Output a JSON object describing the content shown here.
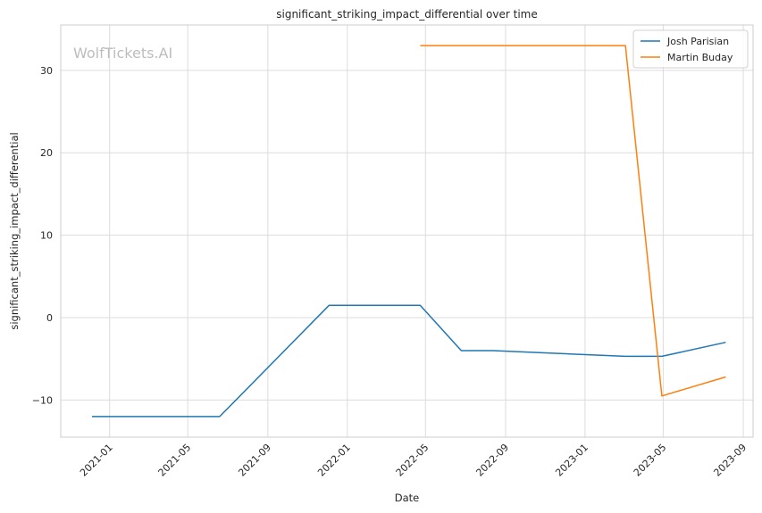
{
  "chart_data": {
    "type": "line",
    "title": "significant_striking_impact_differential over time",
    "xlabel": "Date",
    "ylabel": "significant_striking_impact_differential",
    "watermark": "WolfTickets.AI",
    "xlim": [
      "2020-10-18",
      "2023-09-16"
    ],
    "ylim": [
      -14.5,
      35.5
    ],
    "x_ticks": [
      "2021-01-01",
      "2021-05-01",
      "2021-09-01",
      "2022-01-01",
      "2022-05-01",
      "2022-09-01",
      "2023-01-01",
      "2023-05-01",
      "2023-09-01"
    ],
    "x_tick_labels": [
      "2021-01",
      "2021-05",
      "2021-09",
      "2022-01",
      "2022-05",
      "2022-09",
      "2023-01",
      "2023-05",
      "2023-09"
    ],
    "y_ticks": [
      -10,
      0,
      10,
      20,
      30
    ],
    "y_tick_labels": [
      "−10",
      "0",
      "10",
      "20",
      "30"
    ],
    "grid": true,
    "legend_position": "top-right",
    "series": [
      {
        "name": "Josh Parisian",
        "color": "#1f77b4",
        "x": [
          "2020-12-05",
          "2021-06-19",
          "2021-12-04",
          "2022-04-23",
          "2022-06-25",
          "2022-08-13",
          "2023-03-04",
          "2023-04-29",
          "2023-08-05"
        ],
        "y": [
          -12,
          -12,
          1.5,
          1.5,
          -4,
          -4,
          -4.7,
          -4.7,
          -3
        ]
      },
      {
        "name": "Martin Buday",
        "color": "#ff7f0e",
        "x": [
          "2022-04-23",
          "2023-03-04",
          "2023-04-29",
          "2023-08-05"
        ],
        "y": [
          33,
          33,
          -9.5,
          -7.2
        ]
      }
    ]
  }
}
